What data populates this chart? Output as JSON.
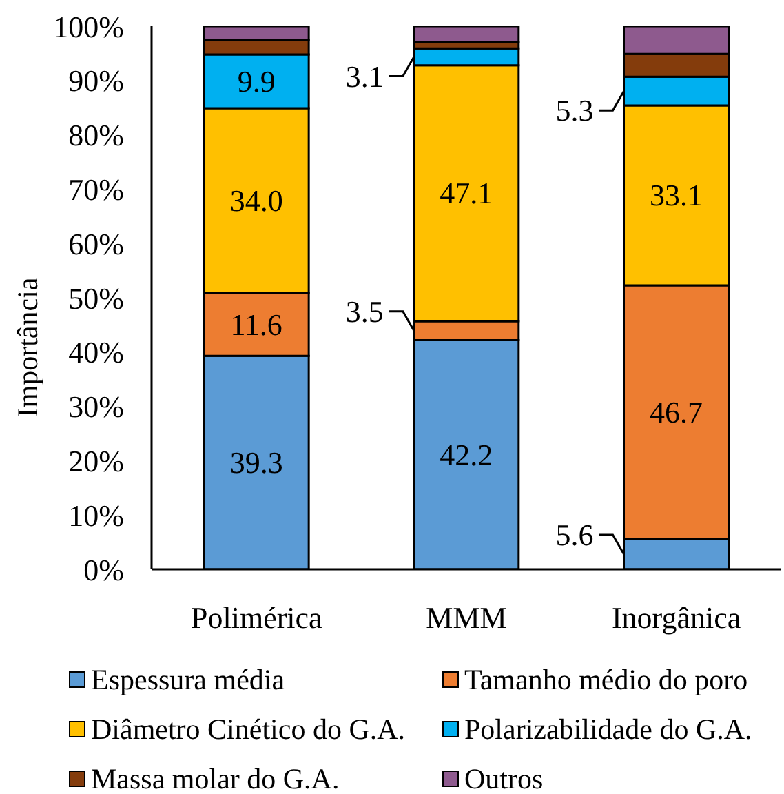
{
  "chart_data": {
    "type": "bar",
    "stacked": true,
    "ylabel": "Importância",
    "categories": [
      "Polimérica",
      "MMM",
      "Inorgânica"
    ],
    "ylim": [
      0,
      100
    ],
    "yticks": [
      {
        "value": 0,
        "label": "0%"
      },
      {
        "value": 10,
        "label": "10%"
      },
      {
        "value": 20,
        "label": "20%"
      },
      {
        "value": 30,
        "label": "30%"
      },
      {
        "value": 40,
        "label": "40%"
      },
      {
        "value": 50,
        "label": "50%"
      },
      {
        "value": 60,
        "label": "60%"
      },
      {
        "value": 70,
        "label": "70%"
      },
      {
        "value": 80,
        "label": "80%"
      },
      {
        "value": 90,
        "label": "90%"
      },
      {
        "value": 100,
        "label": "100%"
      }
    ],
    "series": [
      {
        "name": "Espessura média",
        "color": "#5b9bd5",
        "values": [
          39.3,
          42.2,
          5.6
        ],
        "value_labels": [
          "39.3",
          "42.2",
          "5.6"
        ]
      },
      {
        "name": "Tamanho médio do poro",
        "color": "#ed7d31",
        "values": [
          11.6,
          3.5,
          46.7
        ],
        "value_labels": [
          "11.6",
          "3.5",
          "46.7"
        ]
      },
      {
        "name": "Diâmetro Cinético do G.A.",
        "color": "#ffc000",
        "values": [
          34.0,
          47.1,
          33.1
        ],
        "value_labels": [
          "34.0",
          "47.1",
          "33.1"
        ]
      },
      {
        "name": "Polarizabilidade do G.A.",
        "color": "#00b0f0",
        "values": [
          9.9,
          3.1,
          5.3
        ],
        "value_labels": [
          "9.9",
          "3.1",
          "5.3"
        ]
      },
      {
        "name": "Massa molar do G.A.",
        "color": "#843c0c",
        "values": [
          2.7,
          1.2,
          4.2
        ]
      },
      {
        "name": "Outros",
        "color": "#8e5a8e",
        "values": [
          2.5,
          2.9,
          5.1
        ]
      }
    ],
    "legend": "bottom"
  }
}
